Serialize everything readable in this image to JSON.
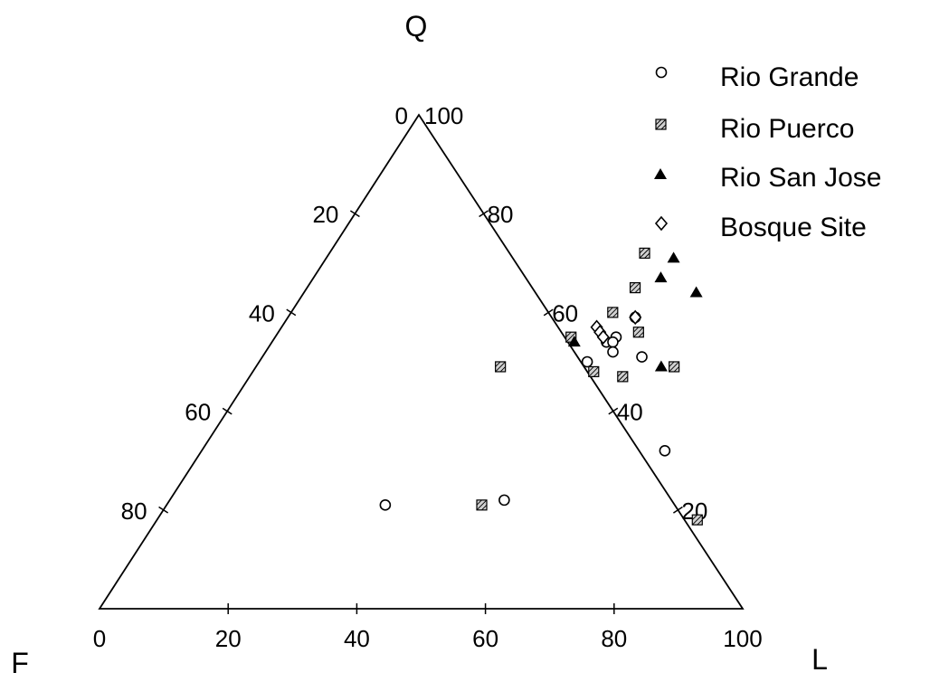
{
  "chart_data": {
    "type": "scatter",
    "subtype": "ternary",
    "apex_labels": {
      "top": "Q",
      "left": "F",
      "right": "L"
    },
    "ticks": {
      "base": [
        "0",
        "20",
        "40",
        "60",
        "80",
        "100"
      ],
      "left_edge": [
        "0",
        "20",
        "40",
        "60",
        "80"
      ],
      "right_edge": [
        "100",
        "80",
        "60",
        "40",
        "20"
      ]
    },
    "legend_position": "top-right",
    "series": [
      {
        "name": "Rio Grande",
        "marker": "circle-open",
        "points": [
          [
            54,
            59
          ],
          [
            52,
            54
          ],
          [
            53,
            55
          ],
          [
            53,
            54
          ],
          [
            54,
            52
          ],
          [
            51,
            50
          ],
          [
            59,
            51
          ],
          [
            72,
            32
          ],
          [
            52,
            22
          ],
          [
            34,
            21
          ]
        ]
      },
      {
        "name": "Rio Puerco",
        "marker": "square-hatched",
        "points": [
          [
            49,
            72
          ],
          [
            51,
            65
          ],
          [
            50,
            60
          ],
          [
            56,
            56
          ],
          [
            46,
            55
          ],
          [
            38,
            49
          ],
          [
            53,
            48
          ],
          [
            58,
            47
          ],
          [
            65,
            49
          ],
          [
            49,
            21
          ],
          [
            84,
            18
          ]
        ]
      },
      {
        "name": "Rio San Jose",
        "marker": "triangle-filled",
        "points": [
          [
            54,
            71
          ],
          [
            54,
            67
          ],
          [
            61,
            64
          ],
          [
            47,
            54
          ],
          [
            63,
            49
          ]
        ]
      },
      {
        "name": "Bosque Site",
        "marker": "diamond-open",
        "points": [
          [
            54,
            59
          ],
          [
            49,
            57
          ],
          [
            50,
            56
          ],
          [
            51,
            55
          ]
        ]
      }
    ]
  }
}
